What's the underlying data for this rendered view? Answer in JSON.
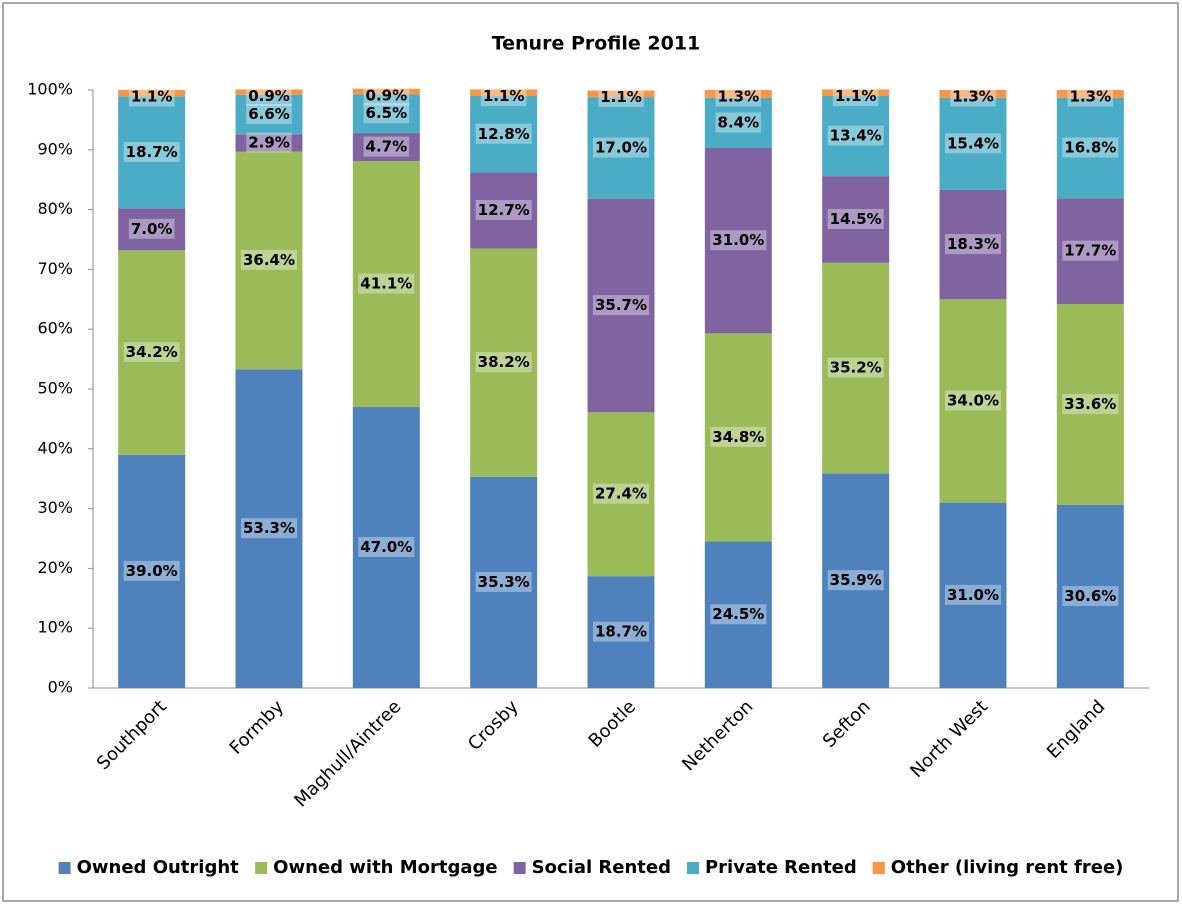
{
  "chart_data": {
    "type": "bar",
    "stacked": true,
    "title": "Tenure Profile 2011",
    "categories": [
      "Southport",
      "Formby",
      "Maghull/Aintree",
      "Crosby",
      "Bootle",
      "Netherton",
      "Sefton",
      "North West",
      "England"
    ],
    "series": [
      {
        "name": "Owned Outright",
        "color": "#4f81bd",
        "values": [
          39.0,
          53.3,
          47.0,
          35.3,
          18.7,
          24.5,
          35.9,
          31.0,
          30.6
        ],
        "value_labels": [
          "39.0%",
          "53.3%",
          "47.0%",
          "35.3%",
          "18.7%",
          "24.5%",
          "35.9%",
          "31.0%",
          "30.6%"
        ]
      },
      {
        "name": "Owned with Mortgage",
        "color": "#9bbb59",
        "values": [
          34.2,
          36.4,
          41.1,
          38.2,
          27.4,
          34.8,
          35.2,
          34.0,
          33.6
        ],
        "value_labels": [
          "34.2%",
          "36.4%",
          "41.1%",
          "38.2%",
          "27.4%",
          "34.8%",
          "35.2%",
          "34.0%",
          "33.6%"
        ]
      },
      {
        "name": "Social Rented",
        "color": "#8064a2",
        "values": [
          7.0,
          2.9,
          4.7,
          12.7,
          35.7,
          31.0,
          14.5,
          18.3,
          17.7
        ],
        "value_labels": [
          "7.0%",
          "2.9%",
          "4.7%",
          "12.7%",
          "35.7%",
          "31.0%",
          "14.5%",
          "18.3%",
          "17.7%"
        ]
      },
      {
        "name": "Private Rented",
        "color": "#4bacc6",
        "values": [
          18.7,
          6.6,
          6.5,
          12.8,
          17.0,
          8.4,
          13.4,
          15.4,
          16.8
        ],
        "value_labels": [
          "18.7%",
          "6.6%",
          "6.5%",
          "12.8%",
          "17.0%",
          "8.4%",
          "13.4%",
          "15.4%",
          "16.8%"
        ]
      },
      {
        "name": "Other (living rent free)",
        "color": "#f79646",
        "values": [
          1.1,
          0.9,
          0.9,
          1.1,
          1.1,
          1.3,
          1.1,
          1.3,
          1.3
        ],
        "value_labels": [
          "1.1%",
          "0.9%",
          "0.9%",
          "1.1%",
          "1.1%",
          "1.3%",
          "1.1%",
          "1.3%",
          "1.3%"
        ]
      }
    ],
    "ylim": [
      0,
      100
    ],
    "yticks": [
      {
        "value": 0,
        "label": "0%"
      },
      {
        "value": 10,
        "label": "10%"
      },
      {
        "value": 20,
        "label": "20%"
      },
      {
        "value": 30,
        "label": "30%"
      },
      {
        "value": 40,
        "label": "40%"
      },
      {
        "value": 50,
        "label": "50%"
      },
      {
        "value": 60,
        "label": "60%"
      },
      {
        "value": 70,
        "label": "70%"
      },
      {
        "value": 80,
        "label": "80%"
      },
      {
        "value": 90,
        "label": "90%"
      },
      {
        "value": 100,
        "label": "100%"
      }
    ],
    "legend": "bottom"
  }
}
